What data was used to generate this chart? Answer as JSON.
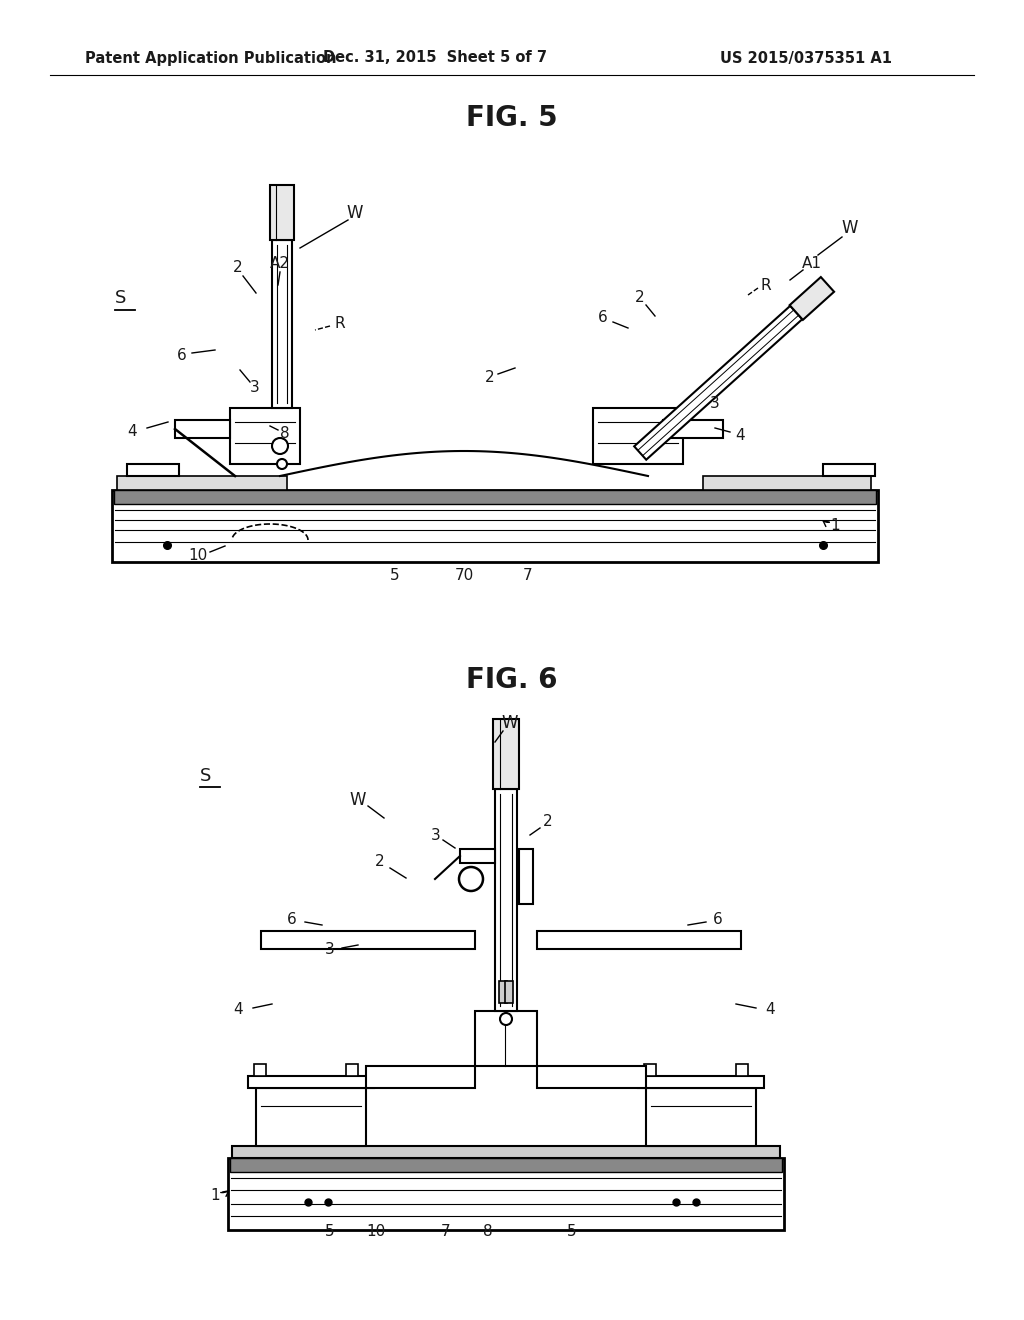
{
  "bg_color": "#ffffff",
  "line_color": "#000000",
  "text_color": "#1a1a1a",
  "header_left": "Patent Application Publication",
  "header_mid": "Dec. 31, 2015  Sheet 5 of 7",
  "header_right": "US 2015/0375351 A1",
  "fig5_title": "FIG. 5",
  "fig6_title": "FIG. 6"
}
